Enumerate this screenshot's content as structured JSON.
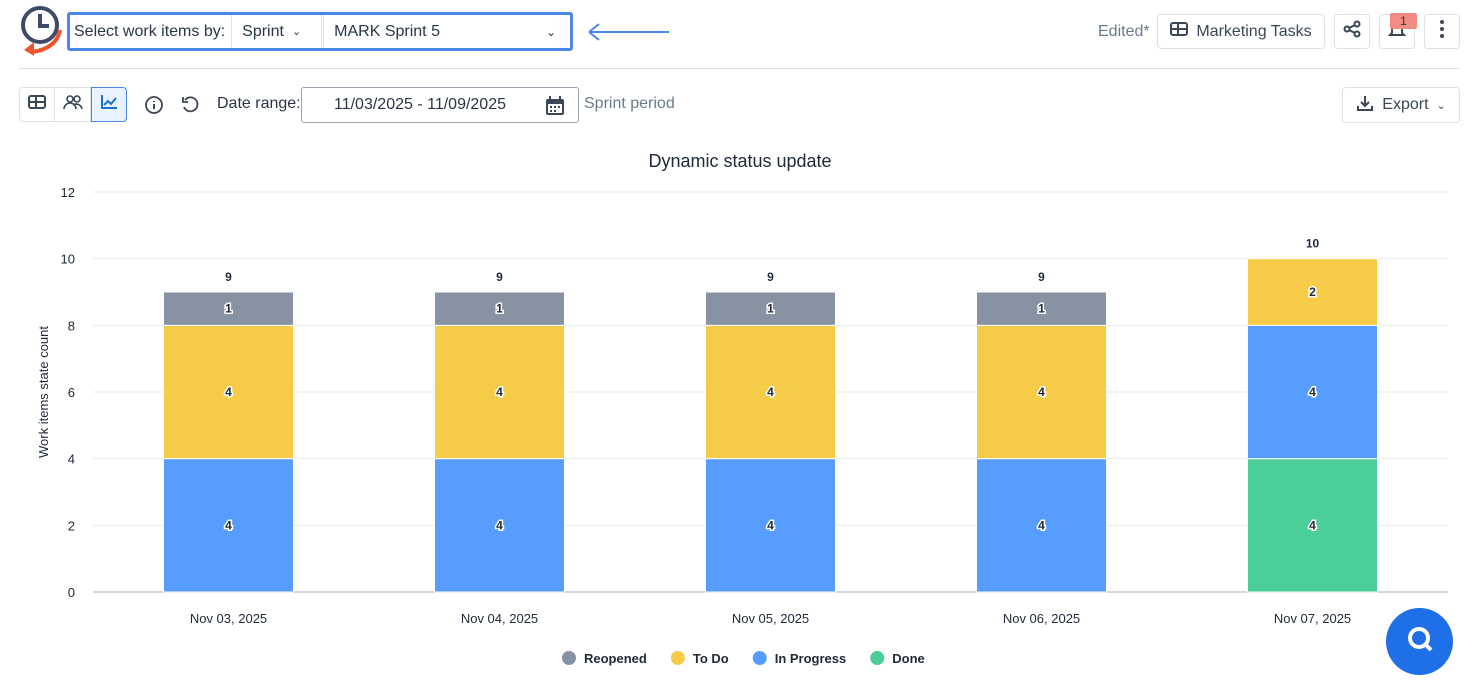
{
  "header": {
    "select_label": "Select work items by:",
    "group_by": "Sprint",
    "sprint": "MARK Sprint 5",
    "edited": "Edited*",
    "board": "Marketing Tasks",
    "notification_count": "1"
  },
  "toolbar": {
    "date_range_label": "Date range:",
    "date_range": "11/03/2025 - 11/09/2025",
    "period": "Sprint period",
    "export": "Export"
  },
  "colors": {
    "accent": "#4a86e8",
    "Reopened": "#8792a2",
    "To Do": "#f5cb47",
    "In Progress": "#579dff",
    "Done": "#4bce97"
  },
  "chart_data": {
    "type": "bar",
    "stacked": true,
    "title": "Dynamic status update",
    "xlabel": "",
    "ylabel": "Work items state count",
    "ylim": [
      0,
      12
    ],
    "yticks": [
      0,
      2,
      4,
      6,
      8,
      10,
      12
    ],
    "grid": true,
    "legend": "bottom",
    "categories": [
      "Nov 03, 2025",
      "Nov 04, 2025",
      "Nov 05, 2025",
      "Nov 06, 2025",
      "Nov 07, 2025"
    ],
    "series": [
      {
        "name": "Done",
        "values": [
          0,
          0,
          0,
          0,
          4
        ]
      },
      {
        "name": "In Progress",
        "values": [
          4,
          4,
          4,
          4,
          4
        ]
      },
      {
        "name": "To Do",
        "values": [
          4,
          4,
          4,
          4,
          2
        ]
      },
      {
        "name": "Reopened",
        "values": [
          1,
          1,
          1,
          1,
          0
        ]
      }
    ],
    "totals": [
      9,
      9,
      9,
      9,
      10
    ],
    "legend_order": [
      "Reopened",
      "To Do",
      "In Progress",
      "Done"
    ]
  }
}
